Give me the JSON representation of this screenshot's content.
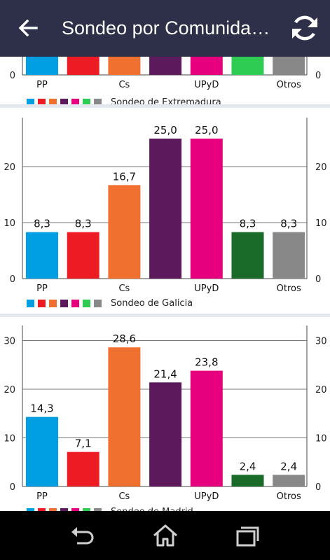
{
  "appbar": {
    "title": "Sondeo por Comunidades",
    "back_icon": "arrow-left-icon",
    "refresh_icon": "refresh-icon"
  },
  "colors": {
    "appbar": "#2e2f48",
    "parties": [
      "#009fe3",
      "#ed1c24",
      "#f07030",
      "#5c1a5c",
      "#e6007e",
      "#1a6b2a",
      "#888888"
    ],
    "legend": [
      "#009fe3",
      "#ed1c24",
      "#f07030",
      "#5c1a5c",
      "#e6007e",
      "#2ecc52",
      "#888888"
    ]
  },
  "categories_shown": [
    "PP",
    "Cs",
    "UPyD",
    "Otros"
  ],
  "chart_data": [
    {
      "type": "bar",
      "legend": "Sondeo de Extremadura",
      "categories": [
        "PP",
        "",
        "Cs",
        "",
        "UPyD",
        "",
        "Otros"
      ],
      "values": [
        null,
        null,
        null,
        null,
        null,
        null,
        null
      ],
      "yticks": [
        "0"
      ],
      "bar_colors": [
        "#009fe3",
        "#ed1c24",
        "#f07030",
        "#5c1a5c",
        "#e6007e",
        "#2ecc52",
        "#888888"
      ],
      "partial": true
    },
    {
      "type": "bar",
      "legend": "Sondeo de Galicia",
      "categories": [
        "PP",
        "",
        "Cs",
        "",
        "UPyD",
        "",
        "Otros"
      ],
      "values": [
        8.3,
        8.3,
        16.7,
        25.0,
        25.0,
        8.3,
        8.3
      ],
      "labels": [
        "8,3",
        "8,3",
        "16,7",
        "25,0",
        "25,0",
        "8,3",
        "8,3"
      ],
      "ylim": [
        0,
        28
      ],
      "yticks": [
        "0",
        "10",
        "20"
      ],
      "bar_colors": [
        "#009fe3",
        "#ed1c24",
        "#f07030",
        "#5c1a5c",
        "#e6007e",
        "#1a6b2a",
        "#888888"
      ]
    },
    {
      "type": "bar",
      "legend": "Sondeo de Madrid",
      "categories": [
        "PP",
        "",
        "Cs",
        "",
        "UPyD",
        "",
        "Otros"
      ],
      "values": [
        14.3,
        7.1,
        28.6,
        21.4,
        23.8,
        2.4,
        2.4
      ],
      "labels": [
        "14,3",
        "7,1",
        "28,6",
        "21,4",
        "23,8",
        "2,4",
        "2,4"
      ],
      "ylim": [
        0,
        30
      ],
      "yticks": [
        "0",
        "10",
        "20",
        "30"
      ],
      "bar_colors": [
        "#009fe3",
        "#ed1c24",
        "#f07030",
        "#5c1a5c",
        "#e6007e",
        "#1a6b2a",
        "#888888"
      ]
    }
  ],
  "navbar": {
    "back_icon": "nav-back-icon",
    "home_icon": "nav-home-icon",
    "recents_icon": "nav-recents-icon"
  }
}
